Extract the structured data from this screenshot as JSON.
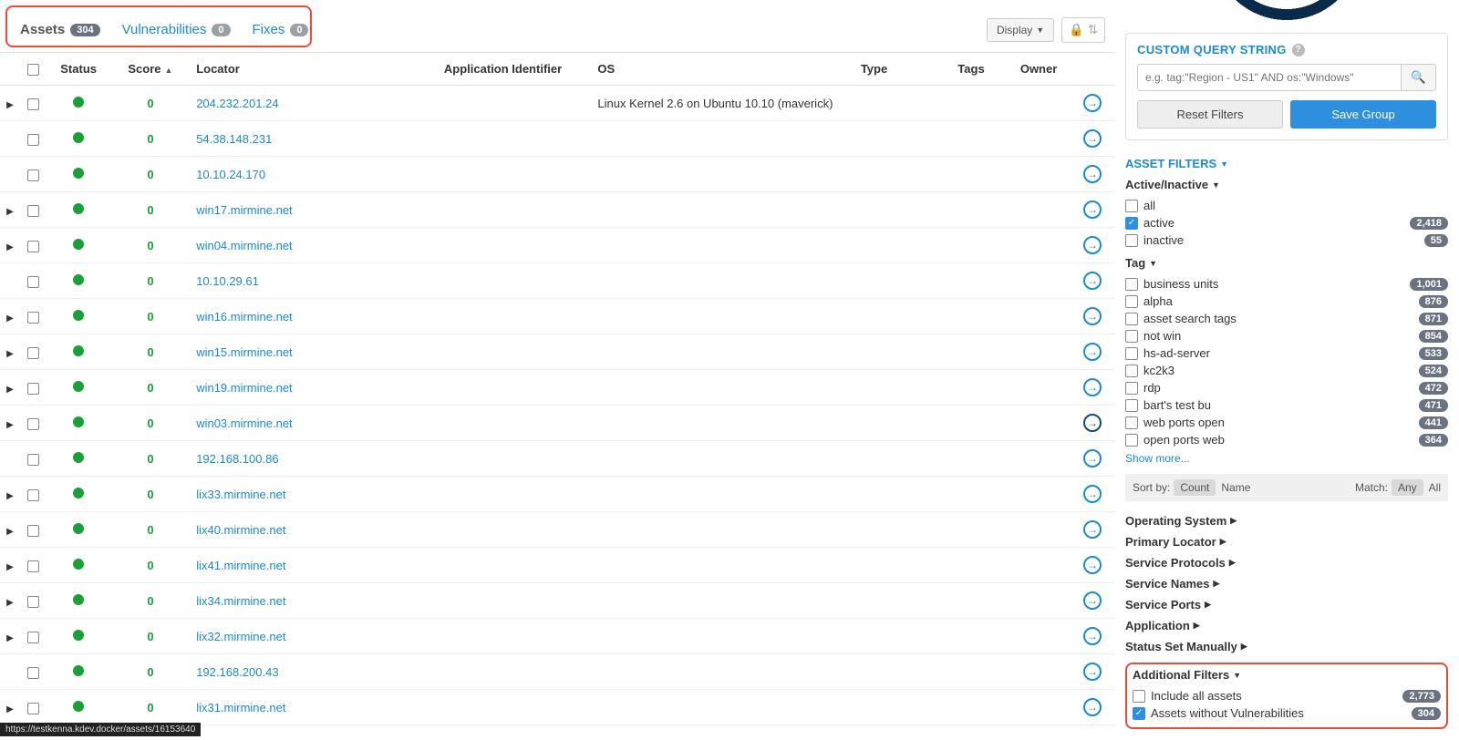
{
  "colors": {
    "link": "#1b8ad3",
    "score": "#1aa038",
    "status_ok": "#1aa038",
    "highlight_border": "#e74c3c",
    "badge_bg": "#6b7280",
    "primary_btn": "#2d8fdd"
  },
  "tabs": {
    "assets": {
      "label": "Assets",
      "count": "304"
    },
    "vulns": {
      "label": "Vulnerabilities",
      "count": "0"
    },
    "fixes": {
      "label": "Fixes",
      "count": "0"
    }
  },
  "toolbar": {
    "display_label": "Display"
  },
  "table": {
    "headers": {
      "status": "Status",
      "score": "Score",
      "locator": "Locator",
      "appid": "Application Identifier",
      "os": "OS",
      "type": "Type",
      "tags": "Tags",
      "owner": "Owner"
    },
    "rows": [
      {
        "expandable": true,
        "score": "0",
        "locator": "204.232.201.24",
        "os": "Linux Kernel 2.6 on Ubuntu 10.10 (maverick)",
        "go_dark": false
      },
      {
        "expandable": false,
        "score": "0",
        "locator": "54.38.148.231",
        "os": "",
        "go_dark": false
      },
      {
        "expandable": false,
        "score": "0",
        "locator": "10.10.24.170",
        "os": "",
        "go_dark": false
      },
      {
        "expandable": true,
        "score": "0",
        "locator": "win17.mirmine.net",
        "os": "",
        "go_dark": false
      },
      {
        "expandable": true,
        "score": "0",
        "locator": "win04.mirmine.net",
        "os": "",
        "go_dark": false
      },
      {
        "expandable": false,
        "score": "0",
        "locator": "10.10.29.61",
        "os": "",
        "go_dark": false
      },
      {
        "expandable": true,
        "score": "0",
        "locator": "win16.mirmine.net",
        "os": "",
        "go_dark": false
      },
      {
        "expandable": true,
        "score": "0",
        "locator": "win15.mirmine.net",
        "os": "",
        "go_dark": false
      },
      {
        "expandable": true,
        "score": "0",
        "locator": "win19.mirmine.net",
        "os": "",
        "go_dark": false
      },
      {
        "expandable": true,
        "score": "0",
        "locator": "win03.mirmine.net",
        "os": "",
        "go_dark": true
      },
      {
        "expandable": false,
        "score": "0",
        "locator": "192.168.100.86",
        "os": "",
        "go_dark": false
      },
      {
        "expandable": true,
        "score": "0",
        "locator": "lix33.mirmine.net",
        "os": "",
        "go_dark": false
      },
      {
        "expandable": true,
        "score": "0",
        "locator": "lix40.mirmine.net",
        "os": "",
        "go_dark": false
      },
      {
        "expandable": true,
        "score": "0",
        "locator": "lix41.mirmine.net",
        "os": "",
        "go_dark": false
      },
      {
        "expandable": true,
        "score": "0",
        "locator": "lix34.mirmine.net",
        "os": "",
        "go_dark": false
      },
      {
        "expandable": true,
        "score": "0",
        "locator": "lix32.mirmine.net",
        "os": "",
        "go_dark": false
      },
      {
        "expandable": false,
        "score": "0",
        "locator": "192.168.200.43",
        "os": "",
        "go_dark": false
      },
      {
        "expandable": true,
        "score": "0",
        "locator": "lix31.mirmine.net",
        "os": "",
        "go_dark": false
      }
    ]
  },
  "sidebar": {
    "custom_query": {
      "title": "CUSTOM QUERY STRING",
      "placeholder": "e.g. tag:\"Region - US1\" AND os:\"Windows\"",
      "reset_label": "Reset Filters",
      "save_label": "Save Group"
    },
    "asset_filters_title": "ASSET FILTERS",
    "active_inactive": {
      "title": "Active/Inactive",
      "items": [
        {
          "label": "all",
          "checked": false,
          "count": ""
        },
        {
          "label": "active",
          "checked": true,
          "count": "2,418"
        },
        {
          "label": "inactive",
          "checked": false,
          "count": "55"
        }
      ]
    },
    "tag": {
      "title": "Tag",
      "items": [
        {
          "label": "business units",
          "count": "1,001"
        },
        {
          "label": "alpha",
          "count": "876"
        },
        {
          "label": "asset search tags",
          "count": "871"
        },
        {
          "label": "not win",
          "count": "854"
        },
        {
          "label": "hs-ad-server",
          "count": "533"
        },
        {
          "label": "kc2k3",
          "count": "524"
        },
        {
          "label": "rdp",
          "count": "472"
        },
        {
          "label": "bart's test bu",
          "count": "471"
        },
        {
          "label": "web ports open",
          "count": "441"
        },
        {
          "label": "open ports web",
          "count": "364"
        }
      ],
      "show_more": "Show more..."
    },
    "sortbar": {
      "sort_label": "Sort by:",
      "sort_active": "Count",
      "sort_other": "Name",
      "match_label": "Match:",
      "match_active": "Any",
      "match_other": "All"
    },
    "collapsed_sections": [
      "Operating System",
      "Primary Locator",
      "Service Protocols",
      "Service Names",
      "Service Ports",
      "Application",
      "Status Set Manually"
    ],
    "additional": {
      "title": "Additional Filters",
      "items": [
        {
          "label": "Include all assets",
          "checked": false,
          "count": "2,773"
        },
        {
          "label": "Assets without Vulnerabilities",
          "checked": true,
          "count": "304"
        }
      ]
    }
  },
  "statusbar_url": "https://testkenna.kdev.docker/assets/16153640"
}
